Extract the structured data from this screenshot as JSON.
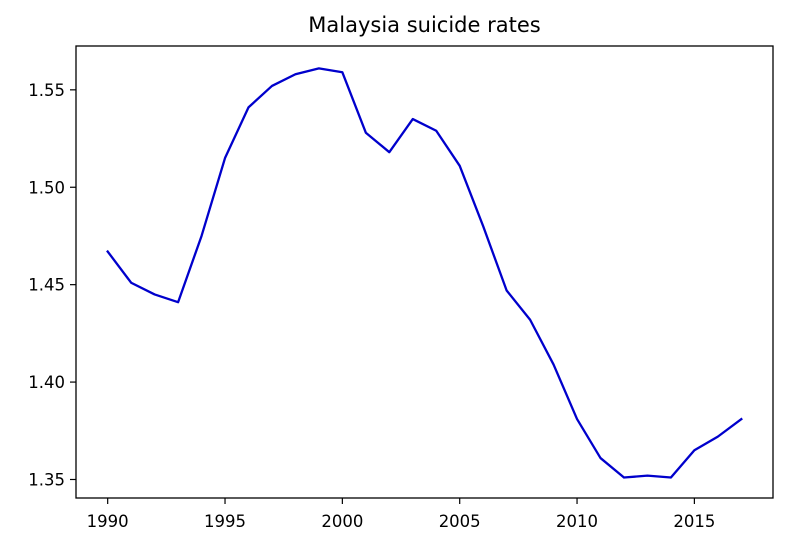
{
  "chart_data": {
    "type": "line",
    "title": "Malaysia suicide rates",
    "xlabel": "",
    "ylabel": "",
    "x": [
      1990,
      1991,
      1992,
      1993,
      1994,
      1995,
      1996,
      1997,
      1998,
      1999,
      2000,
      2001,
      2002,
      2003,
      2004,
      2005,
      2006,
      2007,
      2008,
      2009,
      2010,
      2011,
      2012,
      2013,
      2014,
      2015,
      2016,
      2017
    ],
    "series": [
      {
        "values": [
          1.467,
          1.451,
          1.445,
          1.441,
          1.475,
          1.515,
          1.541,
          1.552,
          1.558,
          1.561,
          1.559,
          1.528,
          1.518,
          1.535,
          1.529,
          1.511,
          1.48,
          1.447,
          1.432,
          1.409,
          1.381,
          1.361,
          1.351,
          1.352,
          1.351,
          1.365,
          1.372,
          1.381
        ],
        "color": "#0000cc"
      }
    ],
    "xlim": [
      1988.65,
      2018.35
    ],
    "ylim": [
      1.3405,
      1.5725
    ],
    "xticks": [
      "1990",
      "1995",
      "2000",
      "2005",
      "2010",
      "2015"
    ],
    "yticks": [
      "1.35",
      "1.40",
      "1.45",
      "1.50",
      "1.55"
    ],
    "grid": false,
    "legend": "none"
  }
}
